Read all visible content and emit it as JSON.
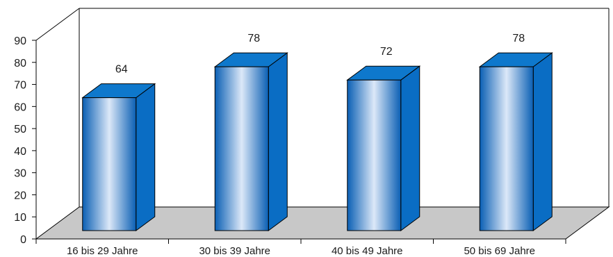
{
  "chart_data": {
    "type": "bar",
    "style": "3d-column",
    "title": "",
    "xlabel": "",
    "ylabel": "",
    "categories": [
      "16 bis 29 Jahre",
      "30 bis 39 Jahre",
      "40 bis 49 Jahre",
      "50 bis 69 Jahre"
    ],
    "values": [
      64,
      78,
      72,
      78
    ],
    "data_labels": [
      "64",
      "78",
      "72",
      "78"
    ],
    "ylim": [
      0,
      90
    ],
    "yticks": [
      "0",
      "10",
      "20",
      "30",
      "40",
      "50",
      "60",
      "70",
      "80",
      "90"
    ],
    "grid": false,
    "legend": "none",
    "colors": {
      "bar_front_edge": "#0a5fb4",
      "bar_front_center": "#dce8f8",
      "bar_top": "#0e78cc",
      "bar_side": "#0a6dc4",
      "floor": "#c8c8c8"
    }
  }
}
